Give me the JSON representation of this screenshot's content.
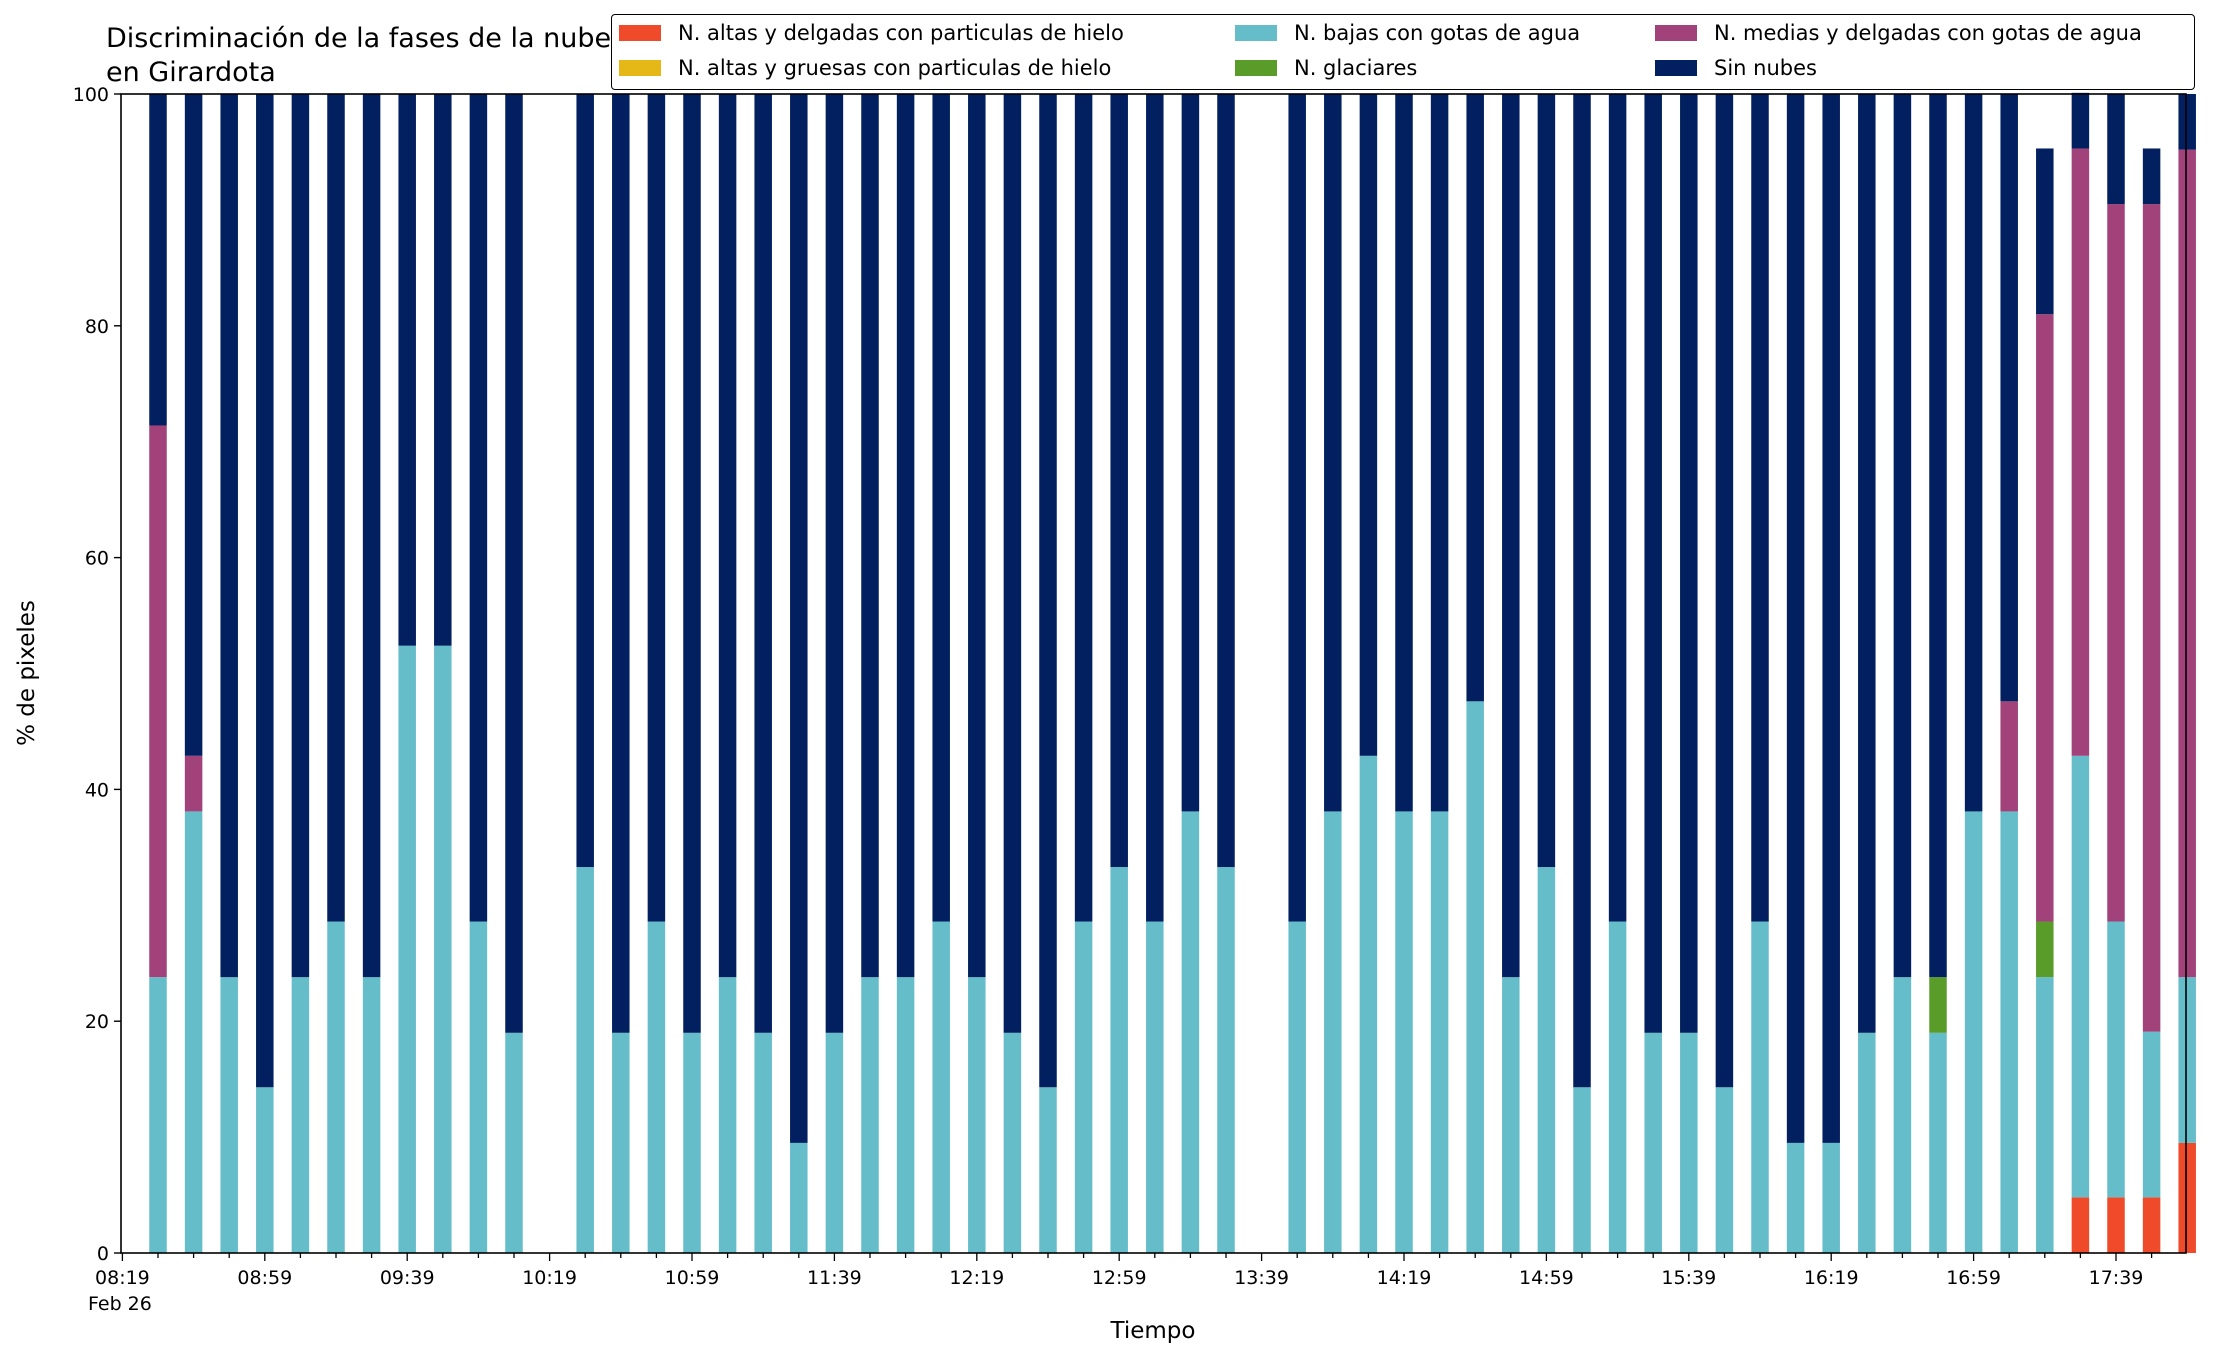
{
  "chart_data": {
    "type": "bar",
    "stacked": true,
    "title": "Discriminación de la fases de la nube en Girardota",
    "xlabel": "Tiempo",
    "ylabel": "% de pixeles",
    "ylim": [
      0,
      100
    ],
    "yticks": [
      "0",
      "20",
      "40",
      "60",
      "80",
      "100"
    ],
    "xtick_labels": [
      "08:19",
      "08:59",
      "09:39",
      "10:19",
      "10:59",
      "11:39",
      "12:19",
      "12:59",
      "13:39",
      "14:19",
      "14:59",
      "15:39",
      "16:19",
      "16:59",
      "17:39"
    ],
    "x_date_label": "Feb 26",
    "grid": false,
    "legend_position": "top-right",
    "x": [
      "08:29",
      "08:39",
      "08:49",
      "08:59",
      "09:09",
      "09:19",
      "09:29",
      "09:39",
      "09:49",
      "09:59",
      "10:09",
      "10:19",
      "10:29",
      "10:39",
      "10:49",
      "10:59",
      "11:09",
      "11:19",
      "11:29",
      "11:39",
      "11:49",
      "11:59",
      "12:09",
      "12:19",
      "12:29",
      "12:39",
      "12:49",
      "12:59",
      "13:09",
      "13:19",
      "13:29",
      "13:39",
      "13:49",
      "13:59",
      "14:09",
      "14:19",
      "14:29",
      "14:39",
      "14:49",
      "14:59",
      "15:09",
      "15:19",
      "15:29",
      "15:39",
      "15:49",
      "15:59",
      "16:09",
      "16:19",
      "16:29",
      "16:39",
      "16:49",
      "16:59",
      "17:09",
      "17:19",
      "17:29",
      "17:39",
      "17:49",
      "17:59"
    ],
    "series": [
      {
        "name": "N. altas y delgadas con particulas de hielo",
        "color": "#ef4a2a",
        "values": [
          0,
          0,
          0,
          0,
          0,
          0,
          0,
          0,
          0,
          0,
          0,
          null,
          0,
          0,
          0,
          0,
          0,
          0,
          0,
          0,
          0,
          0,
          0,
          0,
          0,
          0,
          0,
          0,
          0,
          0,
          0,
          null,
          0,
          0,
          0,
          0,
          0,
          0,
          0,
          0,
          0,
          0,
          0,
          0,
          0,
          0,
          0,
          0,
          0,
          0,
          0,
          0,
          0,
          0,
          4.8,
          4.8,
          4.8,
          9.5
        ]
      },
      {
        "name": "N. altas y gruesas con particulas de hielo",
        "color": "#e5b717",
        "values": [
          0,
          0,
          0,
          0,
          0,
          0,
          0,
          0,
          0,
          0,
          0,
          null,
          0,
          0,
          0,
          0,
          0,
          0,
          0,
          0,
          0,
          0,
          0,
          0,
          0,
          0,
          0,
          0,
          0,
          0,
          0,
          null,
          0,
          0,
          0,
          0,
          0,
          0,
          0,
          0,
          0,
          0,
          0,
          0,
          0,
          0,
          0,
          0,
          0,
          0,
          0,
          0,
          0,
          0,
          0,
          0,
          0,
          0
        ]
      },
      {
        "name": "N. bajas con gotas de agua",
        "color": "#66bdca",
        "values": [
          23.8,
          38.1,
          23.8,
          14.3,
          23.8,
          28.6,
          23.8,
          52.4,
          52.4,
          28.6,
          19.0,
          null,
          33.3,
          19.0,
          28.6,
          19.0,
          23.8,
          19.0,
          9.5,
          19.0,
          23.8,
          23.8,
          28.6,
          23.8,
          19.0,
          14.3,
          28.6,
          33.3,
          28.6,
          38.1,
          33.3,
          null,
          28.6,
          38.1,
          42.9,
          38.1,
          38.1,
          47.6,
          23.8,
          33.3,
          14.3,
          28.6,
          19.0,
          19.0,
          14.3,
          28.6,
          9.5,
          9.5,
          19.0,
          23.8,
          19.0,
          38.1,
          38.1,
          23.8,
          38.1,
          23.8,
          14.3,
          14.3
        ]
      },
      {
        "name": "N. glaciares",
        "color": "#5a9c2a",
        "values": [
          0,
          0,
          0,
          0,
          0,
          0,
          0,
          0,
          0,
          0,
          0,
          null,
          0,
          0,
          0,
          0,
          0,
          0,
          0,
          0,
          0,
          0,
          0,
          0,
          0,
          0,
          0,
          0,
          0,
          0,
          0,
          null,
          0,
          0,
          0,
          0,
          0,
          0,
          0,
          0,
          0,
          0,
          0,
          0,
          0,
          0,
          0,
          0,
          0,
          0,
          4.8,
          0,
          0,
          4.8,
          0,
          0,
          0,
          0
        ]
      },
      {
        "name": "N. medias y delgadas con gotas de agua",
        "color": "#a1427b",
        "values": [
          47.6,
          4.8,
          0,
          0,
          0,
          0,
          0,
          0,
          0,
          0,
          0,
          null,
          0,
          0,
          0,
          0,
          0,
          0,
          0,
          0,
          0,
          0,
          0,
          0,
          0,
          0,
          0,
          0,
          0,
          0,
          0,
          null,
          0,
          0,
          0,
          0,
          0,
          0,
          0,
          0,
          0,
          0,
          0,
          0,
          0,
          0,
          0,
          0,
          0,
          0,
          0,
          0,
          9.5,
          52.4,
          52.4,
          61.9,
          71.4,
          71.4
        ]
      },
      {
        "name": "Sin nubes",
        "color": "#021f60",
        "values": [
          28.6,
          57.1,
          76.2,
          85.7,
          76.2,
          71.4,
          76.2,
          47.6,
          47.6,
          71.4,
          81.0,
          null,
          66.7,
          81.0,
          71.4,
          81.0,
          76.2,
          81.0,
          90.5,
          81.0,
          76.2,
          76.2,
          71.4,
          76.2,
          81.0,
          85.7,
          71.4,
          66.7,
          71.4,
          61.9,
          66.7,
          null,
          71.4,
          61.9,
          57.1,
          61.9,
          61.9,
          52.4,
          76.2,
          66.7,
          85.7,
          71.4,
          81.0,
          81.0,
          85.7,
          71.4,
          90.5,
          90.5,
          81.0,
          76.2,
          76.2,
          61.9,
          52.4,
          14.3,
          4.8,
          9.5,
          4.8,
          4.8
        ]
      }
    ]
  }
}
